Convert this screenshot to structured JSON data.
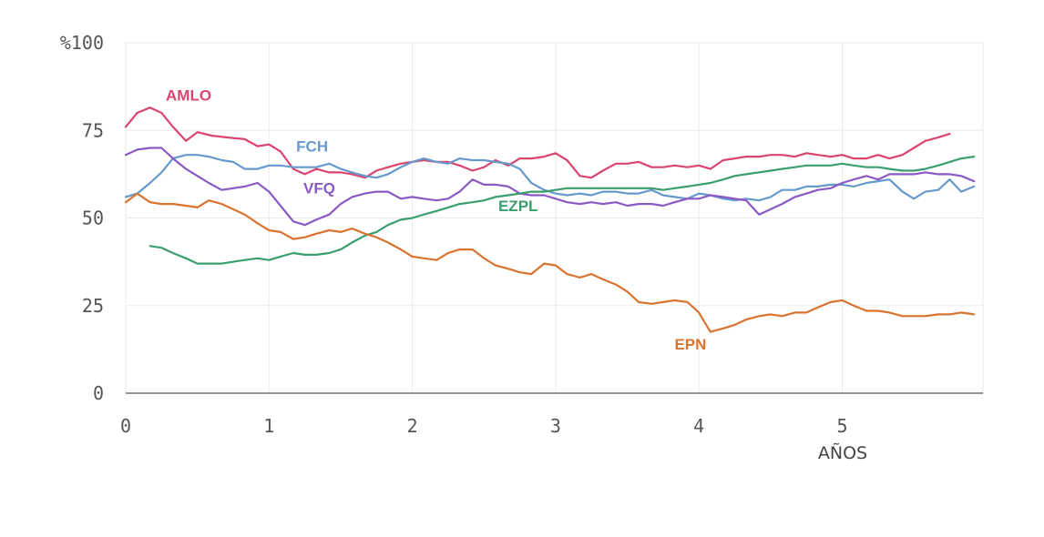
{
  "chart_data": {
    "type": "line",
    "xlabel": "AÑOS",
    "ylabel": "",
    "xlim": [
      0,
      5.9
    ],
    "ylim": [
      0,
      100
    ],
    "x_ticks": [
      0,
      1,
      2,
      3,
      4,
      5
    ],
    "y_ticks": [
      0,
      25,
      50,
      75,
      100
    ],
    "y_tick_labels": [
      "0",
      "25",
      "50",
      "75",
      "%100"
    ],
    "grid": true,
    "legend": "inline labels",
    "series": [
      {
        "name": "AMLO",
        "color": "#d9456f",
        "x": [
          0,
          0.08,
          0.17,
          0.25,
          0.33,
          0.42,
          0.5,
          0.6,
          0.7,
          0.83,
          0.92,
          1.0,
          1.08,
          1.17,
          1.25,
          1.33,
          1.42,
          1.5,
          1.58,
          1.67,
          1.75,
          1.83,
          1.92,
          2.0,
          2.08,
          2.17,
          2.25,
          2.33,
          2.42,
          2.5,
          2.58,
          2.67,
          2.75,
          2.83,
          2.92,
          3.0,
          3.08,
          3.17,
          3.25,
          3.33,
          3.42,
          3.5,
          3.58,
          3.67,
          3.75,
          3.83,
          3.92,
          4.0,
          4.08,
          4.17,
          4.25,
          4.33,
          4.42,
          4.5,
          4.58,
          4.67,
          4.75,
          4.83,
          4.92,
          5.0,
          5.08,
          5.17,
          5.25,
          5.33,
          5.42,
          5.5,
          5.58,
          5.67,
          5.75
        ],
        "values": [
          76,
          80,
          81.5,
          80,
          76,
          72,
          74.5,
          73.5,
          73,
          72.5,
          70.5,
          71,
          69,
          64,
          62.5,
          64,
          63,
          63,
          62.5,
          61.5,
          63.5,
          64.5,
          65.5,
          66,
          66.5,
          66,
          66,
          65,
          63.5,
          64.5,
          66.5,
          65,
          67,
          67,
          67.5,
          68.5,
          66.5,
          62,
          61.5,
          63.5,
          65.5,
          65.5,
          66,
          64.5,
          64.5,
          65,
          64.5,
          65,
          64,
          66.5,
          67,
          67.5,
          67.5,
          68,
          68,
          67.5,
          68.5,
          68,
          67.5,
          68,
          67,
          67,
          68,
          67,
          68,
          70,
          72,
          73,
          74
        ]
      },
      {
        "name": "FCH",
        "color": "#6699cc",
        "x": [
          0,
          0.08,
          0.17,
          0.25,
          0.33,
          0.42,
          0.5,
          0.58,
          0.67,
          0.75,
          0.83,
          0.92,
          1.0,
          1.08,
          1.17,
          1.25,
          1.33,
          1.42,
          1.5,
          1.58,
          1.67,
          1.75,
          1.83,
          1.92,
          2.0,
          2.08,
          2.17,
          2.25,
          2.33,
          2.42,
          2.5,
          2.58,
          2.67,
          2.75,
          2.83,
          2.92,
          3.0,
          3.08,
          3.17,
          3.25,
          3.33,
          3.42,
          3.5,
          3.58,
          3.67,
          3.75,
          3.83,
          3.92,
          4.0,
          4.08,
          4.17,
          4.25,
          4.33,
          4.42,
          4.5,
          4.58,
          4.67,
          4.75,
          4.83,
          4.92,
          5.0,
          5.08,
          5.17,
          5.25,
          5.33,
          5.42,
          5.5,
          5.58,
          5.67,
          5.75,
          5.83,
          5.92
        ],
        "values": [
          56,
          57,
          60,
          63,
          67,
          68,
          68,
          67.5,
          66.5,
          66,
          64,
          64,
          65,
          65,
          64.5,
          64.5,
          64.5,
          65.5,
          64,
          63,
          62,
          61.5,
          62.5,
          64.5,
          66,
          67,
          66,
          65.5,
          67,
          66.5,
          66.5,
          66,
          65.5,
          64,
          60,
          58,
          57,
          56.5,
          57,
          56.5,
          57.5,
          57.5,
          57,
          57,
          58,
          56.5,
          56,
          55.5,
          57,
          56.5,
          55.5,
          55,
          55.5,
          55,
          56,
          58,
          58,
          59,
          59,
          59.5,
          59.5,
          59,
          60,
          60.5,
          61,
          57.5,
          55.5,
          57.5,
          58,
          61,
          57.5,
          59
        ]
      },
      {
        "name": "VFQ",
        "color": "#8b59c4",
        "x": [
          0,
          0.08,
          0.17,
          0.25,
          0.33,
          0.42,
          0.5,
          0.58,
          0.67,
          0.75,
          0.83,
          0.92,
          1.0,
          1.08,
          1.17,
          1.25,
          1.33,
          1.42,
          1.5,
          1.58,
          1.67,
          1.75,
          1.83,
          1.92,
          2.0,
          2.08,
          2.17,
          2.25,
          2.33,
          2.42,
          2.5,
          2.58,
          2.67,
          2.75,
          2.83,
          2.92,
          3.0,
          3.08,
          3.17,
          3.25,
          3.33,
          3.42,
          3.5,
          3.58,
          3.67,
          3.75,
          3.83,
          3.92,
          4.0,
          4.08,
          4.17,
          4.25,
          4.33,
          4.42,
          4.5,
          4.58,
          4.67,
          4.75,
          4.83,
          4.92,
          5.0,
          5.08,
          5.17,
          5.25,
          5.33,
          5.42,
          5.5,
          5.58,
          5.67,
          5.75,
          5.83,
          5.92
        ],
        "values": [
          68,
          69.5,
          70,
          70,
          67,
          64,
          62,
          60,
          58,
          58.5,
          59,
          60,
          57.5,
          53.5,
          49,
          48,
          49.5,
          51,
          54,
          56,
          57,
          57.5,
          57.5,
          55.5,
          56,
          55.5,
          55,
          55.5,
          57.5,
          61,
          59.5,
          59.5,
          59,
          57,
          56.5,
          56.5,
          55.5,
          54.5,
          54,
          54.5,
          54,
          54.5,
          53.5,
          54,
          54,
          53.5,
          54.5,
          55.5,
          55.5,
          56.5,
          56,
          55.5,
          55,
          51,
          52.5,
          54,
          56,
          57,
          58,
          58.5,
          60,
          61,
          62,
          61,
          62.5,
          62.5,
          62.5,
          63,
          62.5,
          62.5,
          62,
          60.5
        ]
      },
      {
        "name": "EZPL",
        "color": "#3a9e6e",
        "x": [
          0.17,
          0.25,
          0.33,
          0.42,
          0.5,
          0.58,
          0.67,
          0.75,
          0.83,
          0.92,
          1.0,
          1.08,
          1.17,
          1.25,
          1.33,
          1.42,
          1.5,
          1.58,
          1.67,
          1.75,
          1.83,
          1.92,
          2.0,
          2.08,
          2.17,
          2.25,
          2.33,
          2.42,
          2.5,
          2.58,
          2.67,
          2.75,
          2.83,
          2.92,
          3.0,
          3.08,
          3.17,
          3.25,
          3.33,
          3.42,
          3.5,
          3.58,
          3.67,
          3.75,
          3.83,
          3.92,
          4.0,
          4.08,
          4.17,
          4.25,
          4.33,
          4.42,
          4.5,
          4.58,
          4.67,
          4.75,
          4.83,
          4.92,
          5.0,
          5.08,
          5.17,
          5.25,
          5.33,
          5.42,
          5.5,
          5.58,
          5.67,
          5.75,
          5.83,
          5.92
        ],
        "values": [
          42,
          41.5,
          40,
          38.5,
          37,
          37,
          37,
          37.5,
          38,
          38.5,
          38,
          39,
          40,
          39.5,
          39.5,
          40,
          41,
          43,
          45,
          46,
          48,
          49.5,
          50,
          51,
          52,
          53,
          54,
          54.5,
          55,
          56,
          56.5,
          57,
          57.5,
          57.5,
          58,
          58.5,
          58.5,
          58.5,
          58.5,
          58.5,
          58.5,
          58.5,
          58.5,
          58,
          58.5,
          59,
          59.5,
          60,
          61,
          62,
          62.5,
          63,
          63.5,
          64,
          64.5,
          65,
          65,
          65,
          65.5,
          65,
          64.5,
          64.5,
          64,
          63.5,
          63.5,
          64,
          65,
          66,
          67,
          67.5
        ]
      },
      {
        "name": "EPN",
        "color": "#d9732f",
        "x": [
          0,
          0.08,
          0.17,
          0.25,
          0.33,
          0.42,
          0.5,
          0.58,
          0.67,
          0.75,
          0.83,
          0.92,
          1.0,
          1.08,
          1.17,
          1.25,
          1.33,
          1.42,
          1.5,
          1.58,
          1.67,
          1.75,
          1.83,
          1.92,
          2.0,
          2.08,
          2.17,
          2.25,
          2.33,
          2.42,
          2.5,
          2.58,
          2.67,
          2.75,
          2.83,
          2.92,
          3.0,
          3.08,
          3.17,
          3.25,
          3.33,
          3.42,
          3.5,
          3.58,
          3.67,
          3.75,
          3.83,
          3.92,
          4.0,
          4.08,
          4.17,
          4.25,
          4.33,
          4.42,
          4.5,
          4.58,
          4.67,
          4.75,
          4.83,
          4.92,
          5.0,
          5.08,
          5.17,
          5.25,
          5.33,
          5.42,
          5.5,
          5.58,
          5.67,
          5.75,
          5.83,
          5.92
        ],
        "values": [
          54.5,
          57,
          54.5,
          54,
          54,
          53.5,
          53,
          55,
          54,
          52.5,
          51,
          48.5,
          46.5,
          46,
          44,
          44.5,
          45.5,
          46.5,
          46,
          47,
          45.5,
          44.5,
          43,
          41,
          39,
          38.5,
          38,
          40,
          41,
          41,
          38.5,
          36.5,
          35.5,
          34.5,
          34,
          37,
          36.5,
          34,
          33,
          34,
          32.5,
          31,
          29,
          26,
          25.5,
          26,
          26.5,
          26,
          23,
          17.5,
          18.5,
          19.5,
          21,
          22,
          22.5,
          22,
          23,
          23,
          24.5,
          26,
          26.5,
          25,
          23.5,
          23.5,
          23,
          22,
          22,
          22,
          22.5,
          22.5,
          23,
          22.5
        ]
      }
    ],
    "labels": [
      {
        "series": "AMLO",
        "text": "AMLO",
        "x": 0.28,
        "y": 83.5
      },
      {
        "series": "FCH",
        "text": "FCH",
        "x": 1.19,
        "y": 69
      },
      {
        "series": "VFQ",
        "text": "VFQ",
        "x": 1.24,
        "y": 57
      },
      {
        "series": "EZPL",
        "text": "EZPL",
        "x": 2.6,
        "y": 52
      },
      {
        "series": "EPN",
        "text": "EPN",
        "x": 3.83,
        "y": 12.5
      }
    ]
  }
}
